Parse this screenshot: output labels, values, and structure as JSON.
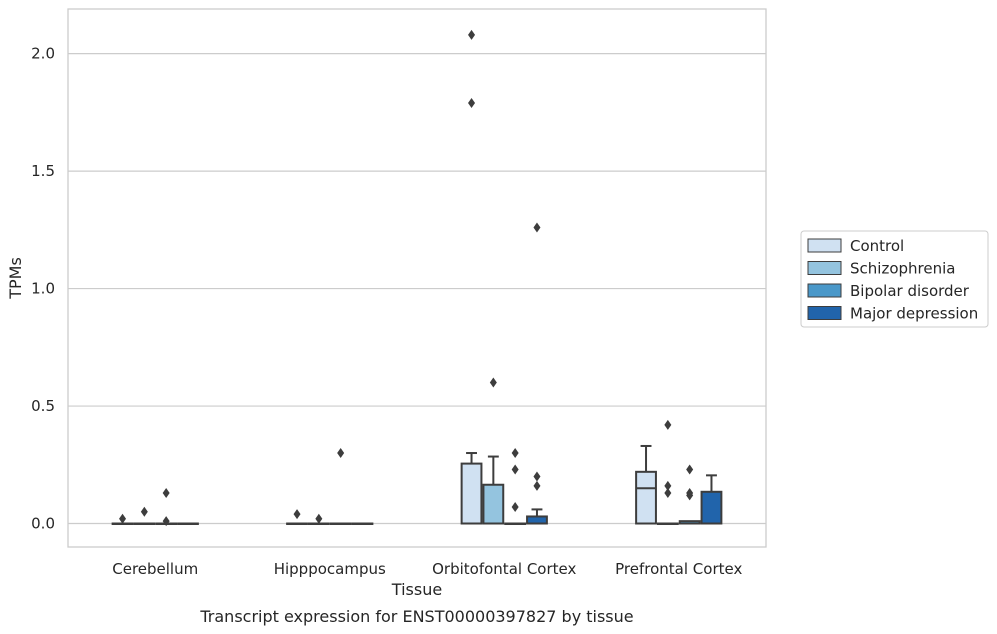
{
  "caption": "Transcript expression for ENST00000397827 by tissue",
  "chart_data": {
    "type": "box",
    "title": "",
    "xlabel": "Tissue",
    "ylabel": "TPMs",
    "ylim": [
      -0.1,
      2.19
    ],
    "yticks": [
      0.0,
      0.5,
      1.0,
      1.5,
      2.0
    ],
    "ytick_labels": [
      "0.0",
      "0.5",
      "1.0",
      "1.5",
      "2.0"
    ],
    "grid": "horizontal",
    "legend_position": "right",
    "categories": [
      "Cerebellum",
      "Hipppocampus",
      "Orbitofontal Cortex",
      "Prefrontal Cortex"
    ],
    "series": [
      {
        "name": "Control",
        "color": "#d0e1f2",
        "boxes": [
          {
            "q1": 0,
            "median": 0,
            "q3": 0,
            "whisker_low": 0,
            "whisker_high": 0,
            "outliers": [
              0.02
            ]
          },
          {
            "q1": 0,
            "median": 0,
            "q3": 0,
            "whisker_low": 0,
            "whisker_high": 0,
            "outliers": [
              0.04
            ]
          },
          {
            "q1": 0,
            "median": 0,
            "q3": 0.255,
            "whisker_low": 0,
            "whisker_high": 0.3,
            "outliers": [
              2.08,
              1.79
            ]
          },
          {
            "q1": 0,
            "median": 0.15,
            "q3": 0.22,
            "whisker_low": 0,
            "whisker_high": 0.33,
            "outliers": []
          }
        ]
      },
      {
        "name": "Schizophrenia",
        "color": "#94c4df",
        "boxes": [
          {
            "q1": 0,
            "median": 0,
            "q3": 0,
            "whisker_low": 0,
            "whisker_high": 0,
            "outliers": [
              0.05
            ]
          },
          {
            "q1": 0,
            "median": 0,
            "q3": 0,
            "whisker_low": 0,
            "whisker_high": 0,
            "outliers": [
              0.02
            ]
          },
          {
            "q1": 0,
            "median": 0,
            "q3": 0.165,
            "whisker_low": 0,
            "whisker_high": 0.285,
            "outliers": [
              0.6
            ]
          },
          {
            "q1": 0,
            "median": 0,
            "q3": 0,
            "whisker_low": 0,
            "whisker_high": 0,
            "outliers": [
              0.42,
              0.16,
              0.13
            ]
          }
        ]
      },
      {
        "name": "Bipolar disorder",
        "color": "#4a98c9",
        "boxes": [
          {
            "q1": 0,
            "median": 0,
            "q3": 0,
            "whisker_low": 0,
            "whisker_high": 0,
            "outliers": [
              0.13,
              0.01
            ]
          },
          {
            "q1": 0,
            "median": 0,
            "q3": 0,
            "whisker_low": 0,
            "whisker_high": 0,
            "outliers": [
              0.3
            ]
          },
          {
            "q1": 0,
            "median": 0,
            "q3": 0,
            "whisker_low": 0,
            "whisker_high": 0,
            "outliers": [
              0.3,
              0.23,
              0.07
            ]
          },
          {
            "q1": 0,
            "median": 0,
            "q3": 0.01,
            "whisker_low": 0,
            "whisker_high": 0.01,
            "outliers": [
              0.23,
              0.13,
              0.12
            ]
          }
        ]
      },
      {
        "name": "Major depression",
        "color": "#2164ab",
        "boxes": [
          {
            "q1": 0,
            "median": 0,
            "q3": 0,
            "whisker_low": 0,
            "whisker_high": 0,
            "outliers": []
          },
          {
            "q1": 0,
            "median": 0,
            "q3": 0,
            "whisker_low": 0,
            "whisker_high": 0,
            "outliers": []
          },
          {
            "q1": 0,
            "median": 0,
            "q3": 0.03,
            "whisker_low": 0,
            "whisker_high": 0.06,
            "outliers": [
              1.26,
              0.2,
              0.16
            ]
          },
          {
            "q1": 0,
            "median": 0,
            "q3": 0.135,
            "whisker_low": 0,
            "whisker_high": 0.205,
            "outliers": []
          }
        ]
      }
    ]
  }
}
